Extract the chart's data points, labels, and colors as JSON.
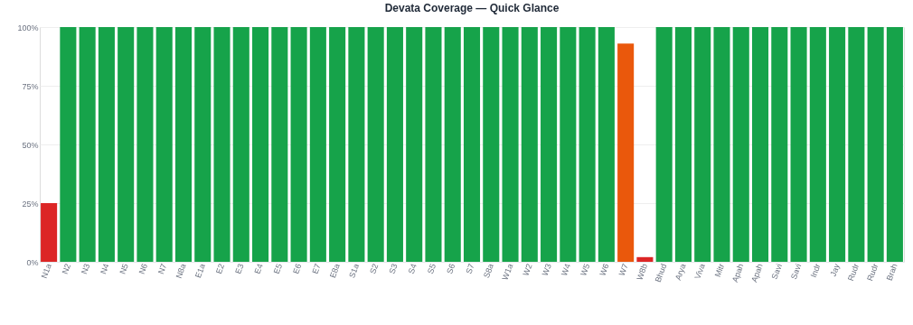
{
  "chart_data": {
    "type": "bar",
    "title": "Devata Coverage — Quick Glance",
    "categories": [
      "N1a",
      "N2",
      "N3",
      "N4",
      "N5",
      "N6",
      "N7",
      "N8a",
      "E1a",
      "E2",
      "E3",
      "E4",
      "E5",
      "E6",
      "E7",
      "E8a",
      "S1a",
      "S2",
      "S3",
      "S4",
      "S5",
      "S6",
      "S7",
      "S8a",
      "W1a",
      "W2",
      "W3",
      "W4",
      "W5",
      "W6",
      "W7",
      "W8b",
      "Bhud",
      "Arya",
      "Viva",
      "Mitr",
      "Apah",
      "Apah",
      "Savi",
      "Savi",
      "Indr",
      "Jay",
      "Rudr",
      "Rudr",
      "Brah"
    ],
    "values": [
      25,
      100,
      100,
      100,
      100,
      100,
      100,
      100,
      100,
      100,
      100,
      100,
      100,
      100,
      100,
      100,
      100,
      100,
      100,
      100,
      100,
      100,
      100,
      100,
      100,
      100,
      100,
      100,
      100,
      100,
      93,
      2,
      100,
      100,
      100,
      100,
      100,
      100,
      100,
      100,
      100,
      100,
      100,
      100,
      100
    ],
    "colors": [
      "#dc2626",
      "#16a34a",
      "#16a34a",
      "#16a34a",
      "#16a34a",
      "#16a34a",
      "#16a34a",
      "#16a34a",
      "#16a34a",
      "#16a34a",
      "#16a34a",
      "#16a34a",
      "#16a34a",
      "#16a34a",
      "#16a34a",
      "#16a34a",
      "#16a34a",
      "#16a34a",
      "#16a34a",
      "#16a34a",
      "#16a34a",
      "#16a34a",
      "#16a34a",
      "#16a34a",
      "#16a34a",
      "#16a34a",
      "#16a34a",
      "#16a34a",
      "#16a34a",
      "#16a34a",
      "#ea580c",
      "#dc2626",
      "#16a34a",
      "#16a34a",
      "#16a34a",
      "#16a34a",
      "#16a34a",
      "#16a34a",
      "#16a34a",
      "#16a34a",
      "#16a34a",
      "#16a34a",
      "#16a34a",
      "#16a34a",
      "#16a34a"
    ],
    "ylim": [
      0,
      100
    ],
    "yticks": [
      {
        "value": 0,
        "label": "0%"
      },
      {
        "value": 25,
        "label": "25%"
      },
      {
        "value": 50,
        "label": "50%"
      },
      {
        "value": 75,
        "label": "75%"
      },
      {
        "value": 100,
        "label": "100%"
      }
    ],
    "grid": "y"
  }
}
